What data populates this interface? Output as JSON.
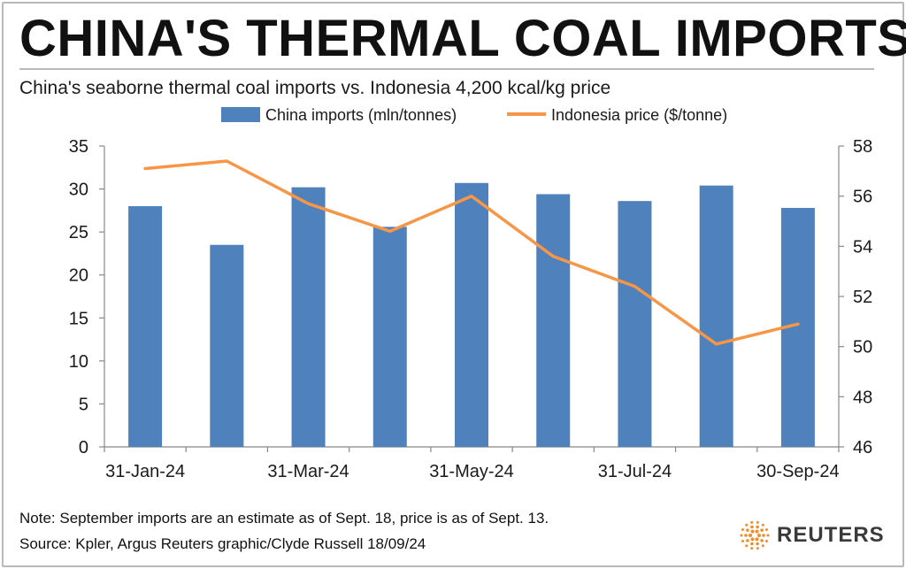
{
  "header": {
    "title": "CHINA'S THERMAL COAL IMPORTS",
    "subtitle": "China's seaborne thermal coal imports vs. Indonesia 4,200 kcal/kg price"
  },
  "footer": {
    "note": "Note: September imports are an estimate as of Sept. 18, price is as of Sept. 13.",
    "source": "Source: Kpler, Argus    Reuters graphic/Clyde Russell 18/09/24",
    "logo_text": "REUTERS"
  },
  "colors": {
    "bars": "#4f81bd",
    "line": "#f79646",
    "axis": "#888888",
    "text": "#1a1a1a"
  },
  "chart_data": {
    "type": "bar+line",
    "categories": [
      "31-Jan-24",
      "29-Feb-24",
      "31-Mar-24",
      "30-Apr-24",
      "31-May-24",
      "30-Jun-24",
      "31-Jul-24",
      "31-Aug-24",
      "30-Sep-24"
    ],
    "x_tick_labels": [
      "31-Jan-24",
      "31-Mar-24",
      "31-May-24",
      "31-Jul-24",
      "30-Sep-24"
    ],
    "series": [
      {
        "name": "China imports (mln/tonnes)",
        "type": "bar",
        "axis": "left",
        "values": [
          28.0,
          23.5,
          30.2,
          25.6,
          30.7,
          29.4,
          28.6,
          30.4,
          27.8
        ]
      },
      {
        "name": "Indonesia price ($/tonne)",
        "type": "line",
        "axis": "right",
        "values": [
          57.1,
          57.4,
          55.7,
          54.6,
          56.0,
          53.6,
          52.4,
          50.1,
          50.9
        ]
      }
    ],
    "y_left": {
      "ylim": [
        0,
        35
      ],
      "ticks": [
        0,
        5,
        10,
        15,
        20,
        25,
        30,
        35
      ]
    },
    "y_right": {
      "ylim": [
        46,
        58
      ],
      "ticks": [
        46,
        48,
        50,
        52,
        54,
        56,
        58
      ]
    },
    "legend_position": "top-center",
    "grid": false
  }
}
